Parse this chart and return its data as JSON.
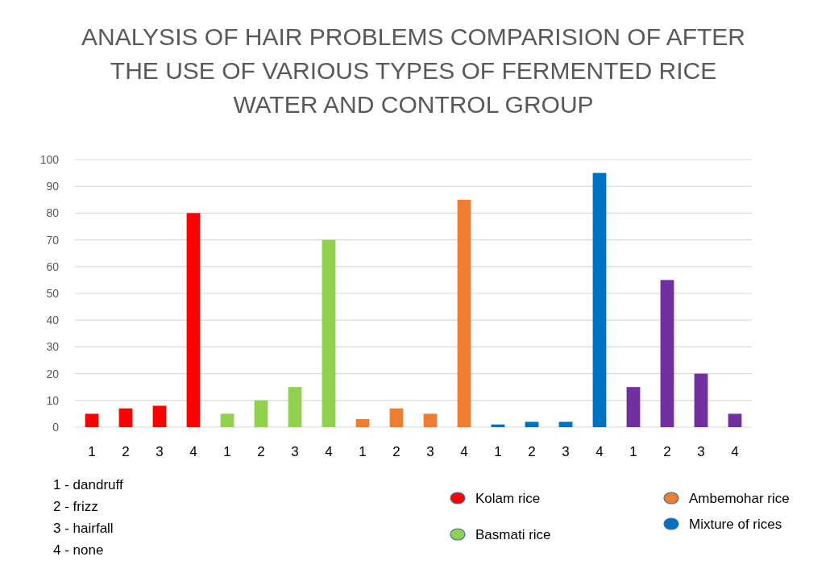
{
  "chart_data": {
    "type": "bar",
    "title": "ANALYSIS OF HAIR PROBLEMS COMPARISION OF AFTER THE USE OF VARIOUS TYPES OF FERMENTED RICE WATER AND CONTROL GROUP",
    "categories": [
      "1",
      "2",
      "3",
      "4",
      "1",
      "2",
      "3",
      "4",
      "1",
      "2",
      "3",
      "4",
      "1",
      "2",
      "3",
      "4",
      "1",
      "2",
      "3",
      "4"
    ],
    "series": [
      {
        "name": "Kolam rice",
        "color": "#ff0000",
        "values": [
          5,
          7,
          8,
          80,
          null,
          null,
          null,
          null,
          null,
          null,
          null,
          null,
          null,
          null,
          null,
          null,
          null,
          null,
          null,
          null
        ]
      },
      {
        "name": "Basmati rice",
        "color": "#92d050",
        "values": [
          null,
          null,
          null,
          null,
          5,
          10,
          15,
          70,
          null,
          null,
          null,
          null,
          null,
          null,
          null,
          null,
          null,
          null,
          null,
          null
        ]
      },
      {
        "name": "Ambemohar rice",
        "color": "#ed7d31",
        "values": [
          null,
          null,
          null,
          null,
          null,
          null,
          null,
          null,
          3,
          7,
          5,
          85,
          null,
          null,
          null,
          null,
          null,
          null,
          null,
          null
        ]
      },
      {
        "name": "Mixture of rices",
        "color": "#0070c0",
        "values": [
          null,
          null,
          null,
          null,
          null,
          null,
          null,
          null,
          null,
          null,
          null,
          null,
          1,
          2,
          2,
          95,
          null,
          null,
          null,
          null
        ]
      },
      {
        "color": "#7030a0",
        "values": [
          null,
          null,
          null,
          null,
          null,
          null,
          null,
          null,
          null,
          null,
          null,
          null,
          null,
          null,
          null,
          null,
          15,
          55,
          20,
          5
        ]
      }
    ],
    "ylim": [
      0,
      100
    ],
    "yticks": [
      0,
      10,
      20,
      30,
      40,
      50,
      60,
      70,
      80,
      90,
      100
    ],
    "grid": "y",
    "legend": "bottom right",
    "annotations": [
      "1 - dandruff",
      "2 - frizz",
      "3 - hairfall",
      "4 - none"
    ]
  }
}
